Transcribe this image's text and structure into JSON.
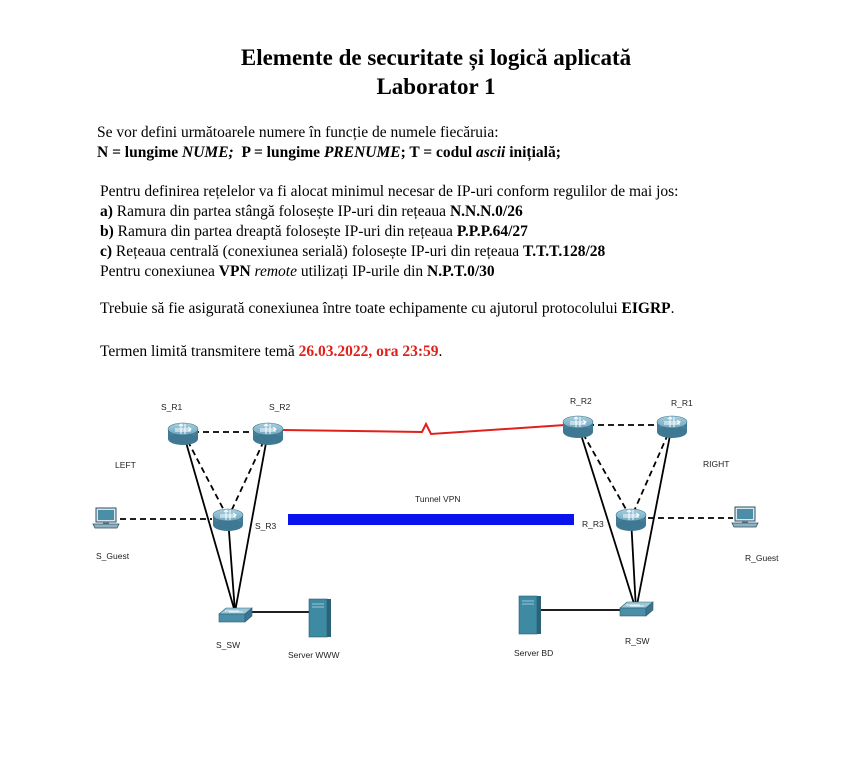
{
  "header": {
    "title_line1": "Elemente de securitate și logică aplicată",
    "title_line2": "Laborator 1"
  },
  "definitions": {
    "intro": "Se vor defini următoarele numere în funcție de numele fiecăruia:",
    "n_prefix": "N = lungime ",
    "n_term": "NUME;",
    "p_prefix": "P = lungime ",
    "p_term": "PRENUME",
    "t_prefix": "; T = codul ",
    "t_term": "ascii",
    "t_suffix": " inițială;"
  },
  "networks": {
    "intro": "Pentru definirea rețelelor va fi alocat minimul necesar de IP-uri conform regulilor de mai jos:",
    "a_label": "a)",
    "a_text": " Ramura din partea stângă folosește IP-uri din rețeaua ",
    "a_net": "N.N.N.0/26",
    "b_label": "b)",
    "b_text": " Ramura din partea dreaptă folosește IP-uri din rețeaua ",
    "b_net": "P.P.P.64/27",
    "c_label": "c)",
    "c_text": " Rețeaua centrală (conexiunea serială) folosește IP-uri din rețeaua ",
    "c_net": "T.T.T.128/28",
    "vpn_pre": "Pentru conexiunea ",
    "vpn_bold": "VPN",
    "vpn_mid": " remote",
    "vpn_post": " utilizați IP-urile din ",
    "vpn_net": "N.P.T.0/30"
  },
  "eigrp": {
    "text": "Trebuie să fie asigurată conexiunea între toate echipamente cu ajutorul protocolului ",
    "protocol": "EIGRP",
    "end": "."
  },
  "deadline": {
    "text": "Termen limită transmitere temă ",
    "date": "26.03.2022, ora 23:59",
    "end": "."
  },
  "topology": {
    "labels": {
      "s_r1": "S_R1",
      "s_r2": "S_R2",
      "s_r3": "S_R3",
      "r_r1": "R_R1",
      "r_r2": "R_R2",
      "r_r3": "R_R3",
      "left": "LEFT",
      "right": "RIGHT",
      "tunnel": "Tunnel VPN",
      "s_guest": "S_Guest",
      "r_guest": "R_Guest",
      "s_sw": "S_SW",
      "r_sw": "R_SW",
      "server_www": "Server WWW",
      "server_bd": "Server BD"
    },
    "colors": {
      "serial_link": "#e0211b",
      "vpn_tunnel": "#0a12ee",
      "router": "#5b93ac",
      "switch": "#4a8ea8",
      "server": "#3e8aa3"
    }
  }
}
